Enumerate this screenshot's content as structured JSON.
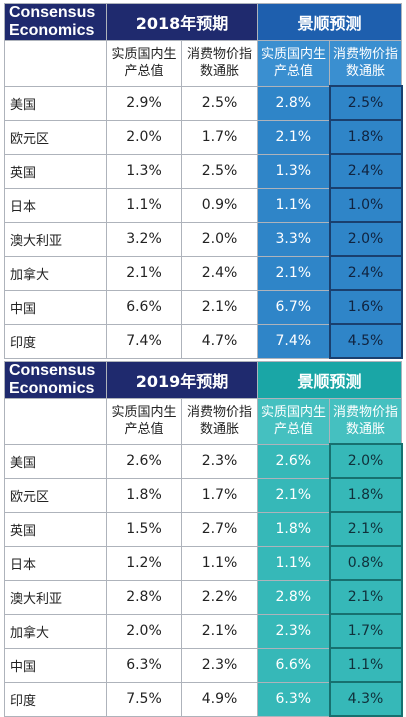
{
  "logo": {
    "line1": "Consensus",
    "line2": "Economics"
  },
  "table1": {
    "title_left": "2018年预期",
    "title_right": "景顺预测",
    "col_gdp": "实质国内生产总值",
    "col_cpi": "消费物价指数通胀",
    "rows": [
      {
        "country": "美国",
        "cons_gdp": "2.9%",
        "cons_cpi": "2.5%",
        "inv_gdp": "2.8%",
        "inv_cpi": "2.5%"
      },
      {
        "country": "欧元区",
        "cons_gdp": "2.0%",
        "cons_cpi": "1.7%",
        "inv_gdp": "2.1%",
        "inv_cpi": "1.8%"
      },
      {
        "country": "英国",
        "cons_gdp": "1.3%",
        "cons_cpi": "2.5%",
        "inv_gdp": "1.3%",
        "inv_cpi": "2.4%"
      },
      {
        "country": "日本",
        "cons_gdp": "1.1%",
        "cons_cpi": "0.9%",
        "inv_gdp": "1.1%",
        "inv_cpi": "1.0%"
      },
      {
        "country": "澳大利亚",
        "cons_gdp": "3.2%",
        "cons_cpi": "2.0%",
        "inv_gdp": "3.3%",
        "inv_cpi": "2.0%"
      },
      {
        "country": "加拿大",
        "cons_gdp": "2.1%",
        "cons_cpi": "2.4%",
        "inv_gdp": "2.1%",
        "inv_cpi": "2.4%"
      },
      {
        "country": "中国",
        "cons_gdp": "6.6%",
        "cons_cpi": "2.1%",
        "inv_gdp": "6.7%",
        "inv_cpi": "1.6%"
      },
      {
        "country": "印度",
        "cons_gdp": "7.4%",
        "cons_cpi": "4.7%",
        "inv_gdp": "7.4%",
        "inv_cpi": "4.5%"
      }
    ]
  },
  "table2": {
    "title_left": "2019年预期",
    "title_right": "景顺预测",
    "col_gdp": "实质国内生产总值",
    "col_cpi": "消费物价指数通胀",
    "rows": [
      {
        "country": "美国",
        "cons_gdp": "2.6%",
        "cons_cpi": "2.3%",
        "inv_gdp": "2.6%",
        "inv_cpi": "2.0%"
      },
      {
        "country": "欧元区",
        "cons_gdp": "1.8%",
        "cons_cpi": "1.7%",
        "inv_gdp": "2.1%",
        "inv_cpi": "1.8%"
      },
      {
        "country": "英国",
        "cons_gdp": "1.5%",
        "cons_cpi": "2.7%",
        "inv_gdp": "1.8%",
        "inv_cpi": "2.1%"
      },
      {
        "country": "日本",
        "cons_gdp": "1.2%",
        "cons_cpi": "1.1%",
        "inv_gdp": "1.1%",
        "inv_cpi": "0.8%"
      },
      {
        "country": "澳大利亚",
        "cons_gdp": "2.8%",
        "cons_cpi": "2.2%",
        "inv_gdp": "2.8%",
        "inv_cpi": "2.1%"
      },
      {
        "country": "加拿大",
        "cons_gdp": "2.0%",
        "cons_cpi": "2.1%",
        "inv_gdp": "2.3%",
        "inv_cpi": "1.7%"
      },
      {
        "country": "中国",
        "cons_gdp": "6.3%",
        "cons_cpi": "2.3%",
        "inv_gdp": "6.6%",
        "inv_cpi": "1.1%"
      },
      {
        "country": "印度",
        "cons_gdp": "7.5%",
        "cons_cpi": "4.9%",
        "inv_gdp": "6.3%",
        "inv_cpi": "4.3%"
      }
    ]
  },
  "colors": {
    "navy": "#1f2a6e",
    "blue_2018": "#2f85c8",
    "teal_2019": "#36b8b8"
  }
}
